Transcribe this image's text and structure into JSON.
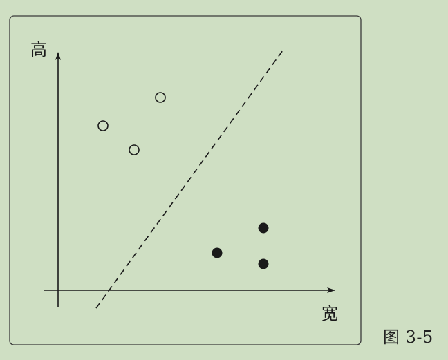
{
  "diagram": {
    "y_axis_label": "高",
    "x_axis_label": "宽",
    "caption": "图 3-5",
    "line_color": "#1a1a1a",
    "hollow_group": [
      {
        "label": "hollow-point-1"
      },
      {
        "label": "hollow-point-2"
      },
      {
        "label": "hollow-point-3"
      }
    ],
    "filled_group": [
      {
        "label": "filled-point-1"
      },
      {
        "label": "filled-point-2"
      },
      {
        "label": "filled-point-3"
      }
    ]
  }
}
